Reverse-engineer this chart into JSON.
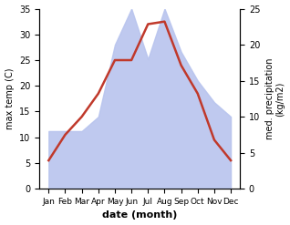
{
  "months": [
    "Jan",
    "Feb",
    "Mar",
    "Apr",
    "May",
    "Jun",
    "Jul",
    "Aug",
    "Sep",
    "Oct",
    "Nov",
    "Dec"
  ],
  "temp": [
    5.5,
    10.5,
    14.0,
    18.5,
    25.0,
    25.0,
    32.0,
    32.5,
    24.0,
    18.5,
    9.5,
    5.5
  ],
  "precip_raw": [
    8,
    8,
    8,
    10,
    20,
    25,
    18,
    25,
    19,
    15,
    12,
    10
  ],
  "temp_color": "#c0392b",
  "precip_color": "#b8c4ee",
  "ylim_temp": [
    0,
    35
  ],
  "ylim_precip": [
    0,
    25
  ],
  "temp_scale": 35,
  "precip_scale": 25,
  "ylabel_left": "max temp (C)",
  "ylabel_right": "med. precipitation\n(kg/m2)",
  "xlabel": "date (month)",
  "yticks_left": [
    0,
    5,
    10,
    15,
    20,
    25,
    30,
    35
  ],
  "yticks_right": [
    0,
    5,
    10,
    15,
    20,
    25
  ],
  "bg_color": "#ffffff"
}
